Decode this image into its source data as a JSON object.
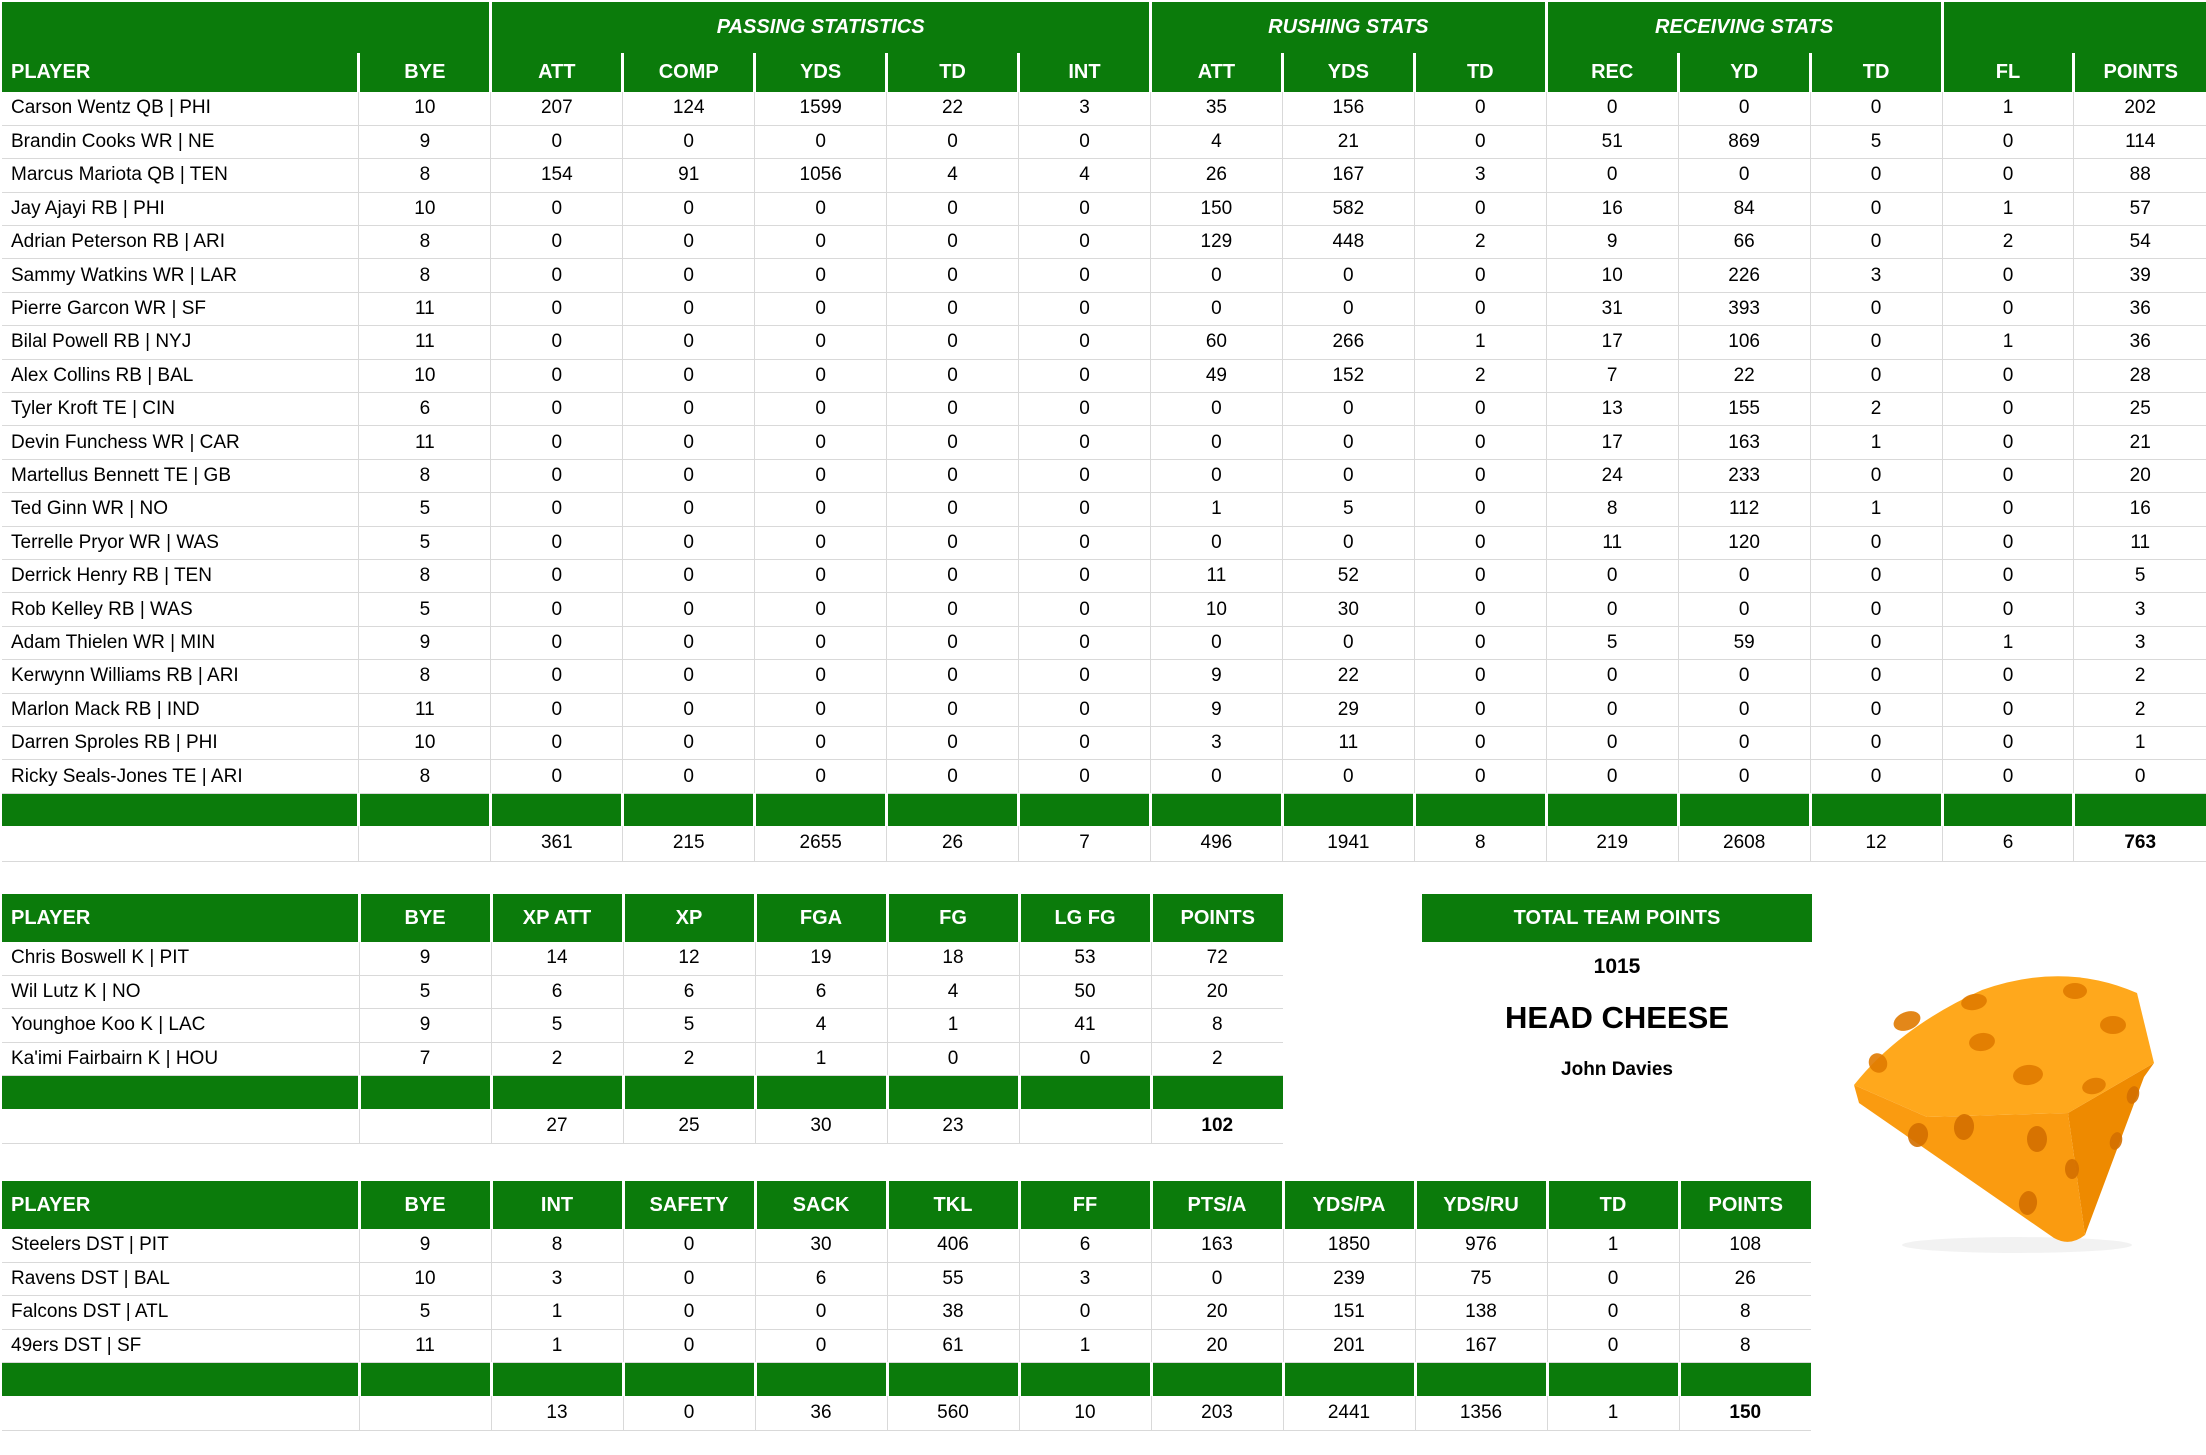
{
  "colors": {
    "header_green": "#0b7b0b",
    "grid_line": "#d9d9d9",
    "cheese_top": "#ffa81c",
    "cheese_front": "#fa9b10",
    "cheese_side": "#ee8a00",
    "cheese_hole": "#e07a00",
    "cheese_hole_dark": "#d36f00"
  },
  "icons": {
    "cheese_wedge": "cheese-wedge-icon"
  },
  "offense_table": {
    "group_headers": [
      {
        "label": "",
        "span": 2
      },
      {
        "label": "PASSING STATISTICS",
        "span": 5
      },
      {
        "label": "RUSHING STATS",
        "span": 3
      },
      {
        "label": "RECEIVING STATS",
        "span": 3
      },
      {
        "label": "",
        "span": 2
      }
    ],
    "columns": [
      "PLAYER",
      "BYE",
      "ATT",
      "COMP",
      "YDS",
      "TD",
      "INT",
      "ATT",
      "YDS",
      "TD",
      "REC",
      "YD",
      "TD",
      "FL",
      "POINTS"
    ],
    "rows": [
      [
        "Carson Wentz QB | PHI",
        "10",
        "207",
        "124",
        "1599",
        "22",
        "3",
        "35",
        "156",
        "0",
        "0",
        "0",
        "0",
        "1",
        "202"
      ],
      [
        "Brandin Cooks WR | NE",
        "9",
        "0",
        "0",
        "0",
        "0",
        "0",
        "4",
        "21",
        "0",
        "51",
        "869",
        "5",
        "0",
        "114"
      ],
      [
        "Marcus Mariota QB | TEN",
        "8",
        "154",
        "91",
        "1056",
        "4",
        "4",
        "26",
        "167",
        "3",
        "0",
        "0",
        "0",
        "0",
        "88"
      ],
      [
        "Jay Ajayi RB | PHI",
        "10",
        "0",
        "0",
        "0",
        "0",
        "0",
        "150",
        "582",
        "0",
        "16",
        "84",
        "0",
        "1",
        "57"
      ],
      [
        "Adrian Peterson RB | ARI",
        "8",
        "0",
        "0",
        "0",
        "0",
        "0",
        "129",
        "448",
        "2",
        "9",
        "66",
        "0",
        "2",
        "54"
      ],
      [
        "Sammy Watkins WR | LAR",
        "8",
        "0",
        "0",
        "0",
        "0",
        "0",
        "0",
        "0",
        "0",
        "10",
        "226",
        "3",
        "0",
        "39"
      ],
      [
        "Pierre Garcon WR | SF",
        "11",
        "0",
        "0",
        "0",
        "0",
        "0",
        "0",
        "0",
        "0",
        "31",
        "393",
        "0",
        "0",
        "36"
      ],
      [
        "Bilal Powell RB | NYJ",
        "11",
        "0",
        "0",
        "0",
        "0",
        "0",
        "60",
        "266",
        "1",
        "17",
        "106",
        "0",
        "1",
        "36"
      ],
      [
        "Alex Collins RB | BAL",
        "10",
        "0",
        "0",
        "0",
        "0",
        "0",
        "49",
        "152",
        "2",
        "7",
        "22",
        "0",
        "0",
        "28"
      ],
      [
        "Tyler Kroft TE | CIN",
        "6",
        "0",
        "0",
        "0",
        "0",
        "0",
        "0",
        "0",
        "0",
        "13",
        "155",
        "2",
        "0",
        "25"
      ],
      [
        "Devin Funchess WR | CAR",
        "11",
        "0",
        "0",
        "0",
        "0",
        "0",
        "0",
        "0",
        "0",
        "17",
        "163",
        "1",
        "0",
        "21"
      ],
      [
        "Martellus Bennett TE | GB",
        "8",
        "0",
        "0",
        "0",
        "0",
        "0",
        "0",
        "0",
        "0",
        "24",
        "233",
        "0",
        "0",
        "20"
      ],
      [
        "Ted Ginn WR | NO",
        "5",
        "0",
        "0",
        "0",
        "0",
        "0",
        "1",
        "5",
        "0",
        "8",
        "112",
        "1",
        "0",
        "16"
      ],
      [
        "Terrelle Pryor WR | WAS",
        "5",
        "0",
        "0",
        "0",
        "0",
        "0",
        "0",
        "0",
        "0",
        "11",
        "120",
        "0",
        "0",
        "11"
      ],
      [
        "Derrick Henry RB | TEN",
        "8",
        "0",
        "0",
        "0",
        "0",
        "0",
        "11",
        "52",
        "0",
        "0",
        "0",
        "0",
        "0",
        "5"
      ],
      [
        "Rob Kelley RB | WAS",
        "5",
        "0",
        "0",
        "0",
        "0",
        "0",
        "10",
        "30",
        "0",
        "0",
        "0",
        "0",
        "0",
        "3"
      ],
      [
        "Adam Thielen WR | MIN",
        "9",
        "0",
        "0",
        "0",
        "0",
        "0",
        "0",
        "0",
        "0",
        "5",
        "59",
        "0",
        "1",
        "3"
      ],
      [
        "Kerwynn Williams RB | ARI",
        "8",
        "0",
        "0",
        "0",
        "0",
        "0",
        "9",
        "22",
        "0",
        "0",
        "0",
        "0",
        "0",
        "2"
      ],
      [
        "Marlon Mack RB | IND",
        "11",
        "0",
        "0",
        "0",
        "0",
        "0",
        "9",
        "29",
        "0",
        "0",
        "0",
        "0",
        "0",
        "2"
      ],
      [
        "Darren Sproles RB | PHI",
        "10",
        "0",
        "0",
        "0",
        "0",
        "0",
        "3",
        "11",
        "0",
        "0",
        "0",
        "0",
        "0",
        "1"
      ],
      [
        "Ricky Seals-Jones TE | ARI",
        "8",
        "0",
        "0",
        "0",
        "0",
        "0",
        "0",
        "0",
        "0",
        "0",
        "0",
        "0",
        "0",
        "0"
      ]
    ],
    "totals": [
      "",
      "",
      "361",
      "215",
      "2655",
      "26",
      "7",
      "496",
      "1941",
      "8",
      "219",
      "2608",
      "12",
      "6",
      "763"
    ]
  },
  "kicker_table": {
    "columns": [
      "PLAYER",
      "BYE",
      "XP ATT",
      "XP",
      "FGA",
      "FG",
      "LG FG",
      "POINTS"
    ],
    "rows": [
      [
        "Chris Boswell K | PIT",
        "9",
        "14",
        "12",
        "19",
        "18",
        "53",
        "72"
      ],
      [
        "Wil Lutz K | NO",
        "5",
        "6",
        "6",
        "6",
        "4",
        "50",
        "20"
      ],
      [
        "Younghoe Koo K | LAC",
        "9",
        "5",
        "5",
        "4",
        "1",
        "41",
        "8"
      ],
      [
        "Ka'imi Fairbairn K | HOU",
        "7",
        "2",
        "2",
        "1",
        "0",
        "0",
        "2"
      ]
    ],
    "totals": [
      "",
      "",
      "27",
      "25",
      "30",
      "23",
      "",
      "102"
    ]
  },
  "dst_table": {
    "columns": [
      "PLAYER",
      "BYE",
      "INT",
      "SAFETY",
      "SACK",
      "TKL",
      "FF",
      "PTS/A",
      "YDS/PA",
      "YDS/RU",
      "TD",
      "POINTS"
    ],
    "rows": [
      [
        "Steelers DST | PIT",
        "9",
        "8",
        "0",
        "30",
        "406",
        "6",
        "163",
        "1850",
        "976",
        "1",
        "108"
      ],
      [
        "Ravens DST | BAL",
        "10",
        "3",
        "0",
        "6",
        "55",
        "3",
        "0",
        "239",
        "75",
        "0",
        "26"
      ],
      [
        "Falcons DST | ATL",
        "5",
        "1",
        "0",
        "0",
        "38",
        "0",
        "20",
        "151",
        "138",
        "0",
        "8"
      ],
      [
        "49ers DST | SF",
        "11",
        "1",
        "0",
        "0",
        "61",
        "1",
        "20",
        "201",
        "167",
        "0",
        "8"
      ]
    ],
    "totals": [
      "",
      "",
      "13",
      "0",
      "36",
      "560",
      "10",
      "203",
      "2441",
      "1356",
      "1",
      "150"
    ]
  },
  "team_summary": {
    "header": "TOTAL TEAM POINTS",
    "total_points": "1015",
    "team_name": "HEAD CHEESE",
    "owner": "John Davies"
  }
}
